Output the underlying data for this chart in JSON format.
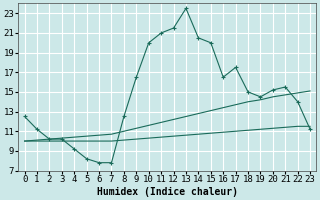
{
  "xlabel": "Humidex (Indice chaleur)",
  "background_color": "#cce8e8",
  "grid_color": "#ffffff",
  "line_color": "#1a6b5a",
  "xlim": [
    -0.5,
    23.5
  ],
  "ylim": [
    7,
    24
  ],
  "xticks": [
    0,
    1,
    2,
    3,
    4,
    5,
    6,
    7,
    8,
    9,
    10,
    11,
    12,
    13,
    14,
    15,
    16,
    17,
    18,
    19,
    20,
    21,
    22,
    23
  ],
  "yticks": [
    7,
    9,
    11,
    13,
    15,
    17,
    19,
    21,
    23
  ],
  "line1_x": [
    0,
    1,
    2,
    3,
    4,
    5,
    6,
    7,
    8,
    9,
    10,
    11,
    12,
    13,
    14,
    15,
    16,
    17,
    18,
    19,
    20,
    21,
    22,
    23
  ],
  "line1_y": [
    12.5,
    11.2,
    10.2,
    10.2,
    9.2,
    8.2,
    7.8,
    7.8,
    12.5,
    16.5,
    20.0,
    21.0,
    21.5,
    23.5,
    20.5,
    20.0,
    16.5,
    17.5,
    15.0,
    14.5,
    15.2,
    15.5,
    14.0,
    11.2
  ],
  "line2_x": [
    0,
    1,
    2,
    3,
    4,
    5,
    6,
    7,
    8,
    9,
    10,
    11,
    12,
    13,
    14,
    15,
    16,
    17,
    18,
    19,
    20,
    21,
    22,
    23
  ],
  "line2_y": [
    10.0,
    10.1,
    10.2,
    10.3,
    10.4,
    10.5,
    10.6,
    10.7,
    11.0,
    11.3,
    11.6,
    11.9,
    12.2,
    12.5,
    12.8,
    13.1,
    13.4,
    13.7,
    14.0,
    14.2,
    14.5,
    14.7,
    14.9,
    15.1
  ],
  "line3_x": [
    0,
    1,
    2,
    3,
    4,
    5,
    6,
    7,
    8,
    9,
    10,
    11,
    12,
    13,
    14,
    15,
    16,
    17,
    18,
    19,
    20,
    21,
    22,
    23
  ],
  "line3_y": [
    10.0,
    10.0,
    10.0,
    10.0,
    10.0,
    10.0,
    10.0,
    10.0,
    10.1,
    10.2,
    10.3,
    10.4,
    10.5,
    10.6,
    10.7,
    10.8,
    10.9,
    11.0,
    11.1,
    11.2,
    11.3,
    11.4,
    11.5,
    11.5
  ],
  "font_size_label": 7,
  "font_size_tick": 6.5
}
